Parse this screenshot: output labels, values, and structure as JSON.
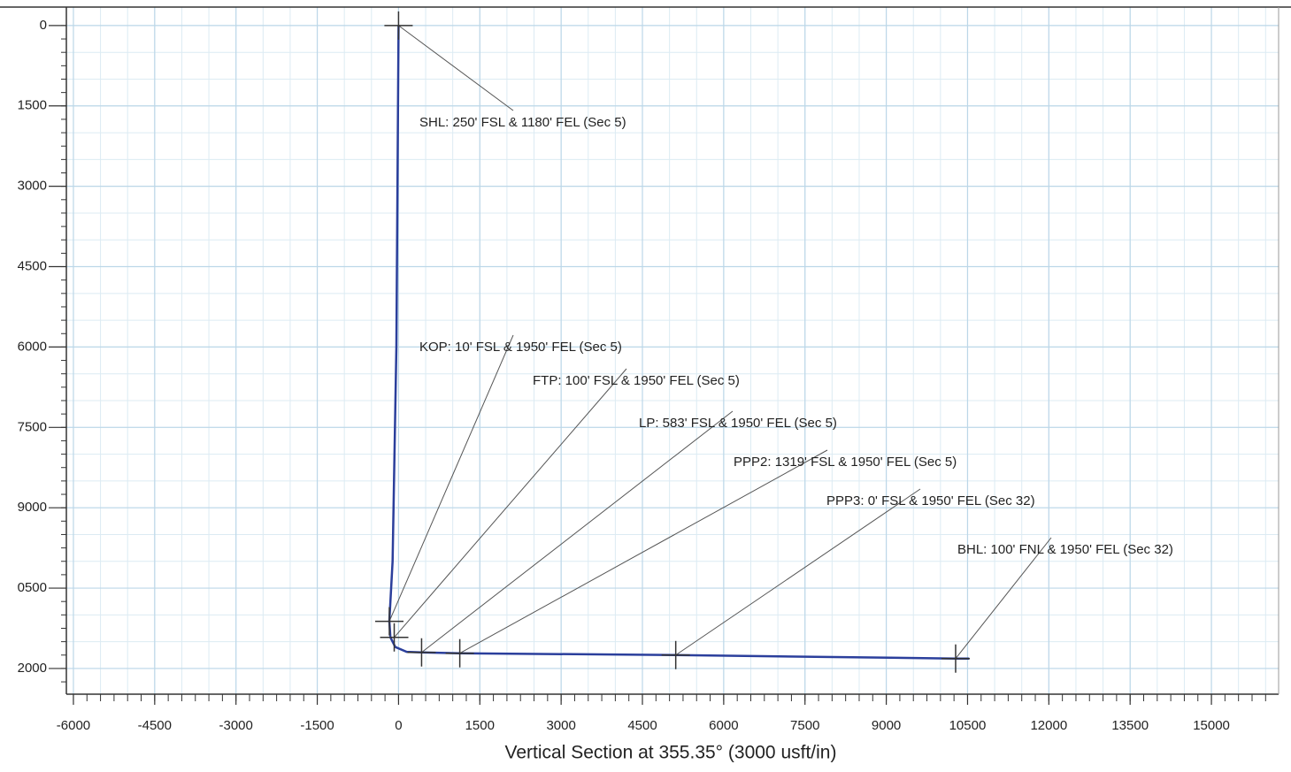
{
  "chart_data": {
    "type": "line",
    "xlabel": "Vertical Section at 355.35° (3000 usft/in)",
    "xlim": [
      -6130,
      16240
    ],
    "ylim": [
      -345,
      12480
    ],
    "y_inverted": true,
    "grid": true,
    "xticks": [
      -6000,
      -4500,
      -3000,
      -1500,
      0,
      1500,
      3000,
      4500,
      6000,
      7500,
      9000,
      10500,
      12000,
      13500,
      15000
    ],
    "yticks": [
      0,
      1500,
      3000,
      4500,
      6000,
      7500,
      9000,
      {
        "value": 10500,
        "label": "0500"
      },
      {
        "value": 12000,
        "label": "2000"
      }
    ],
    "series": [
      {
        "color": "#2b3f9c",
        "x": [
          0,
          -40,
          -110,
          -170,
          -150,
          -60,
          150,
          425,
          1130,
          5115,
          10280,
          10530
        ],
        "values": [
          0,
          6000,
          10000,
          11120,
          11420,
          11600,
          11690,
          11700,
          11716,
          11750,
          11815,
          11815
        ]
      }
    ],
    "annotations": [
      {
        "text": "SHL: 250' FSL & 1180' FEL (Sec 5)",
        "x": 0,
        "y": 0
      },
      {
        "text": "KOP: 10' FSL & 1950' FEL (Sec 5)",
        "x": -170,
        "y": 11120
      },
      {
        "text": "FTP: 100' FSL & 1950' FEL (Sec 5)",
        "x": -80,
        "y": 11420
      },
      {
        "text": "LP: 583' FSL & 1950' FEL (Sec 5)",
        "x": 425,
        "y": 11700
      },
      {
        "text": "PPP2: 1319' FSL & 1950' FEL (Sec 5)",
        "x": 1130,
        "y": 11716
      },
      {
        "text": "PPP3: 0' FSL & 1950' FEL (Sec 32)",
        "x": 5115,
        "y": 11750
      },
      {
        "text": "BHL: 100' FNL & 1950' FEL (Sec 32)",
        "x": 10280,
        "y": 11815
      }
    ]
  }
}
